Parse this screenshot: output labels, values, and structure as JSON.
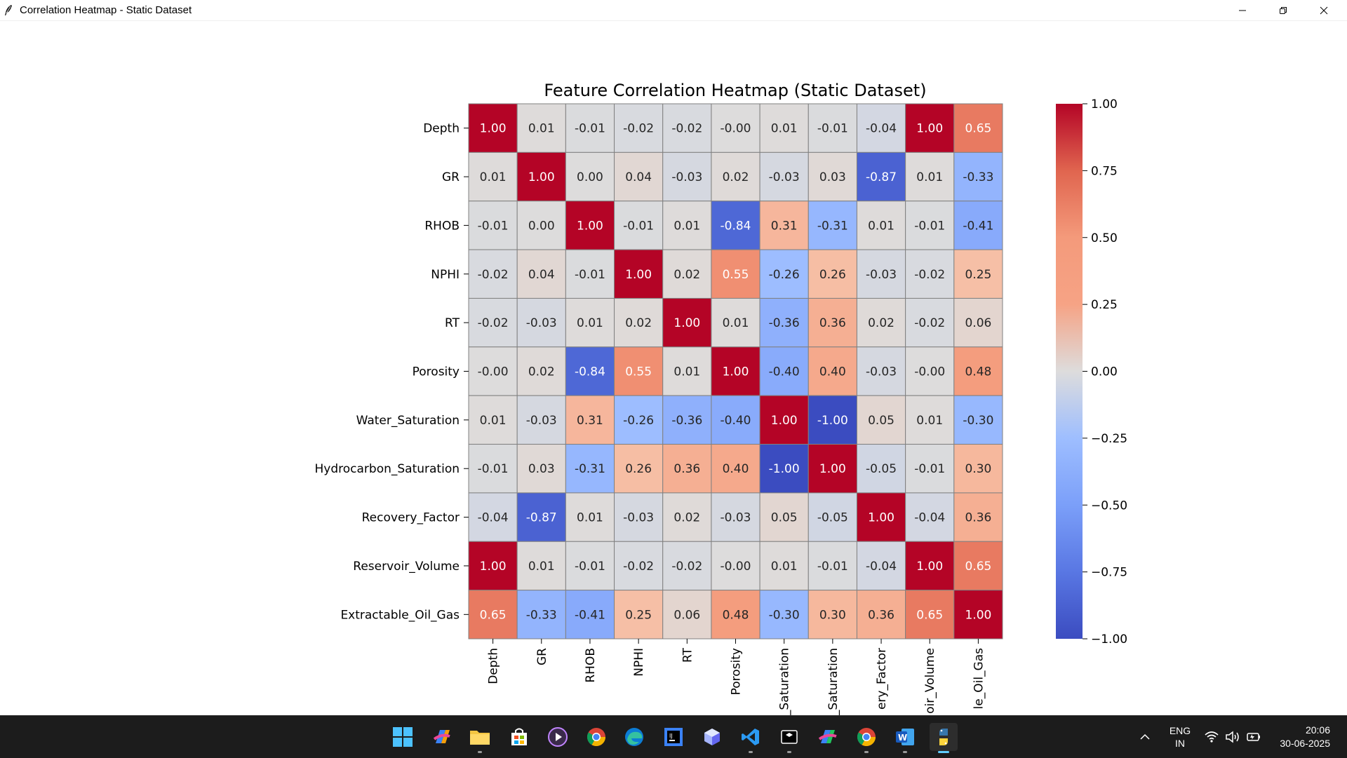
{
  "window": {
    "title": "Correlation Heatmap - Static Dataset",
    "controls": [
      "minimize",
      "restore",
      "close"
    ]
  },
  "chart_data": {
    "type": "heatmap",
    "title": "Feature Correlation Heatmap (Static Dataset)",
    "colormap": "coolwarm",
    "vmin": -1.0,
    "vmax": 1.0,
    "row_labels": [
      "Depth",
      "GR",
      "RHOB",
      "NPHI",
      "RT",
      "Porosity",
      "Water_Saturation",
      "Hydrocarbon_Saturation",
      "Recovery_Factor",
      "Reservoir_Volume",
      "Extractable_Oil_Gas"
    ],
    "col_labels_visible": [
      "Depth",
      "GR",
      "RHOB",
      "NPHI",
      "RT",
      "Porosity",
      "_Saturation",
      "_Saturation",
      "ery_Factor",
      "oir_Volume",
      "le_Oil_Gas"
    ],
    "values": [
      [
        1.0,
        0.01,
        -0.01,
        -0.02,
        -0.02,
        -0.0,
        0.01,
        -0.01,
        -0.04,
        1.0,
        0.65
      ],
      [
        0.01,
        1.0,
        0.0,
        0.04,
        -0.03,
        0.02,
        -0.03,
        0.03,
        -0.87,
        0.01,
        -0.33
      ],
      [
        -0.01,
        0.0,
        1.0,
        -0.01,
        0.01,
        -0.84,
        0.31,
        -0.31,
        0.01,
        -0.01,
        -0.41
      ],
      [
        -0.02,
        0.04,
        -0.01,
        1.0,
        0.02,
        0.55,
        -0.26,
        0.26,
        -0.03,
        -0.02,
        0.25
      ],
      [
        -0.02,
        -0.03,
        0.01,
        0.02,
        1.0,
        0.01,
        -0.36,
        0.36,
        0.02,
        -0.02,
        0.06
      ],
      [
        -0.0,
        0.02,
        -0.84,
        0.55,
        0.01,
        1.0,
        -0.4,
        0.4,
        -0.03,
        -0.0,
        0.48
      ],
      [
        0.01,
        -0.03,
        0.31,
        -0.26,
        -0.36,
        -0.4,
        1.0,
        -1.0,
        0.05,
        0.01,
        -0.3
      ],
      [
        -0.01,
        0.03,
        -0.31,
        0.26,
        0.36,
        0.4,
        -1.0,
        1.0,
        -0.05,
        -0.01,
        0.3
      ],
      [
        -0.04,
        -0.87,
        0.01,
        -0.03,
        0.02,
        -0.03,
        0.05,
        -0.05,
        1.0,
        -0.04,
        0.36
      ],
      [
        1.0,
        0.01,
        -0.01,
        -0.02,
        -0.02,
        -0.0,
        0.01,
        -0.01,
        -0.04,
        1.0,
        0.65
      ],
      [
        0.65,
        -0.33,
        -0.41,
        0.25,
        0.06,
        0.48,
        -0.3,
        0.3,
        0.36,
        0.65,
        1.0
      ]
    ],
    "cell_labels": [
      [
        "1.00",
        "0.01",
        "-0.01",
        "-0.02",
        "-0.02",
        "-0.00",
        "0.01",
        "-0.01",
        "-0.04",
        "1.00",
        "0.65"
      ],
      [
        "0.01",
        "1.00",
        "0.00",
        "0.04",
        "-0.03",
        "0.02",
        "-0.03",
        "0.03",
        "-0.87",
        "0.01",
        "-0.33"
      ],
      [
        "-0.01",
        "0.00",
        "1.00",
        "-0.01",
        "0.01",
        "-0.84",
        "0.31",
        "-0.31",
        "0.01",
        "-0.01",
        "-0.41"
      ],
      [
        "-0.02",
        "0.04",
        "-0.01",
        "1.00",
        "0.02",
        "0.55",
        "-0.26",
        "0.26",
        "-0.03",
        "-0.02",
        "0.25"
      ],
      [
        "-0.02",
        "-0.03",
        "0.01",
        "0.02",
        "1.00",
        "0.01",
        "-0.36",
        "0.36",
        "0.02",
        "-0.02",
        "0.06"
      ],
      [
        "-0.00",
        "0.02",
        "-0.84",
        "0.55",
        "0.01",
        "1.00",
        "-0.40",
        "0.40",
        "-0.03",
        "-0.00",
        "0.48"
      ],
      [
        "0.01",
        "-0.03",
        "0.31",
        "-0.26",
        "-0.36",
        "-0.40",
        "1.00",
        "-1.00",
        "0.05",
        "0.01",
        "-0.30"
      ],
      [
        "-0.01",
        "0.03",
        "-0.31",
        "0.26",
        "0.36",
        "0.40",
        "-1.00",
        "1.00",
        "-0.05",
        "-0.01",
        "0.30"
      ],
      [
        "-0.04",
        "-0.87",
        "0.01",
        "-0.03",
        "0.02",
        "-0.03",
        "0.05",
        "-0.05",
        "1.00",
        "-0.04",
        "0.36"
      ],
      [
        "1.00",
        "0.01",
        "-0.01",
        "-0.02",
        "-0.02",
        "-0.00",
        "0.01",
        "-0.01",
        "-0.04",
        "1.00",
        "0.65"
      ],
      [
        "0.65",
        "-0.33",
        "-0.41",
        "0.25",
        "0.06",
        "0.48",
        "-0.30",
        "0.30",
        "0.36",
        "0.65",
        "1.00"
      ]
    ],
    "colorbar_ticks": [
      1.0,
      0.75,
      0.5,
      0.25,
      0.0,
      -0.25,
      -0.5,
      -0.75,
      -1.0
    ],
    "colorbar_tick_labels": [
      "1.00",
      "0.75",
      "0.50",
      "0.25",
      "0.00",
      "−0.25",
      "−0.50",
      "−0.75",
      "−1.00"
    ]
  },
  "taskbar": {
    "apps": [
      {
        "name": "start-button",
        "icon": "windows-logo-icon"
      },
      {
        "name": "copilot-app",
        "icon": "copilot-icon"
      },
      {
        "name": "file-explorer-app",
        "icon": "folder-icon"
      },
      {
        "name": "microsoft-store-app",
        "icon": "store-icon"
      },
      {
        "name": "media-player-app",
        "icon": "play-icon"
      },
      {
        "name": "chrome-app",
        "icon": "chrome-icon"
      },
      {
        "name": "edge-app",
        "icon": "edge-icon"
      },
      {
        "name": "jetbrains-app",
        "icon": "jetbrains-icon"
      },
      {
        "name": "cube-app",
        "icon": "cube-icon"
      },
      {
        "name": "vscode-app",
        "icon": "vscode-icon"
      },
      {
        "name": "terminal-app",
        "icon": "terminal-box-icon"
      },
      {
        "name": "copilot-m365-app",
        "icon": "m365-icon"
      },
      {
        "name": "chrome-profile-app",
        "icon": "chrome-icon"
      },
      {
        "name": "word-app",
        "icon": "word-icon"
      },
      {
        "name": "python-app",
        "icon": "python-icon"
      }
    ],
    "language": "ENG",
    "region": "IN",
    "time": "20:06",
    "date": "30-06-2025"
  },
  "colors": {
    "taskbar_bg": "#1c1c1c",
    "accent": "#60cdff"
  }
}
